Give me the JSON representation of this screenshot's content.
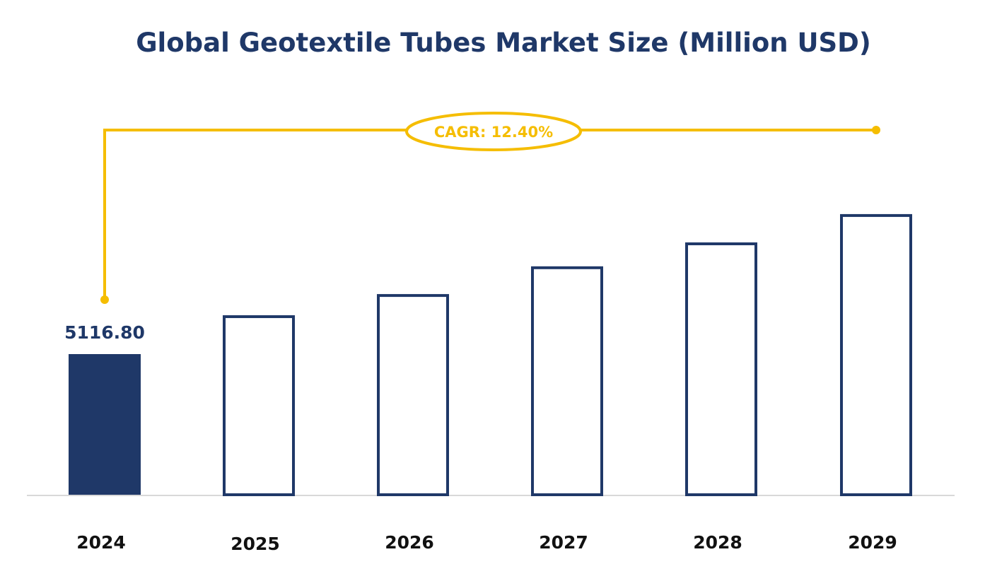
{
  "chart_data": {
    "type": "bar",
    "title": "Global Geotextile Tubes Market Size (Million USD)",
    "categories": [
      "2024",
      "2025",
      "2026",
      "2027",
      "2028",
      "2029"
    ],
    "values": [
      5116.8,
      6530,
      7300,
      8310,
      9180,
      10210
    ],
    "data_labels": [
      "5116.80",
      "",
      "",
      "",
      "",
      ""
    ],
    "annotation": "CAGR: 12.40%",
    "xlabel": "",
    "ylabel": "",
    "grid": false,
    "colors": {
      "filled_bar": "#1f3868",
      "outline_bar": "#1f3868",
      "cagr": "#f5bd00",
      "axis": "#cccccc"
    }
  }
}
